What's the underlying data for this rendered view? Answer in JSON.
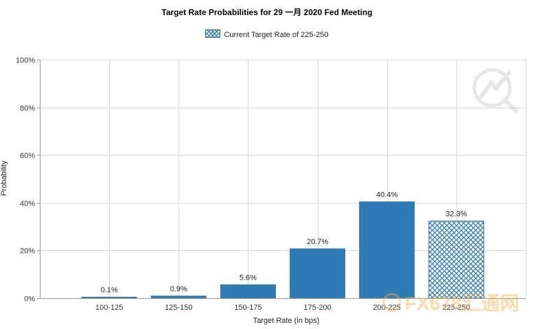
{
  "chart_data": {
    "type": "bar",
    "title": "Target Rate Probabilities for 29 一月 2020  Fed Meeting",
    "xlabel": "Target Rate (in bps)",
    "ylabel": "Probability",
    "categories": [
      "100-125",
      "125-150",
      "150-175",
      "175-200",
      "200-225",
      "225-250"
    ],
    "values": [
      0.1,
      0.9,
      5.6,
      20.7,
      40.4,
      32.3
    ],
    "value_labels": [
      "0.1%",
      "0.9%",
      "5.6%",
      "20.7%",
      "40.4%",
      "32.3%"
    ],
    "ylim": [
      0,
      100
    ],
    "yticks": [
      0,
      20,
      40,
      60,
      80,
      100
    ],
    "ytick_labels": [
      "0%",
      "20%",
      "40%",
      "60%",
      "80%",
      "100%"
    ],
    "grid": true,
    "legend": {
      "position": "top-center",
      "entry": "Current Target Rate of 225-250"
    },
    "highlight_category": "225-250",
    "colors": {
      "bar": "#2e7bb5",
      "hatch": "#2e7bb5",
      "grid": "#d9d9d9",
      "axis": "#999999"
    }
  },
  "watermark": {
    "text": "FX678汇通网"
  }
}
